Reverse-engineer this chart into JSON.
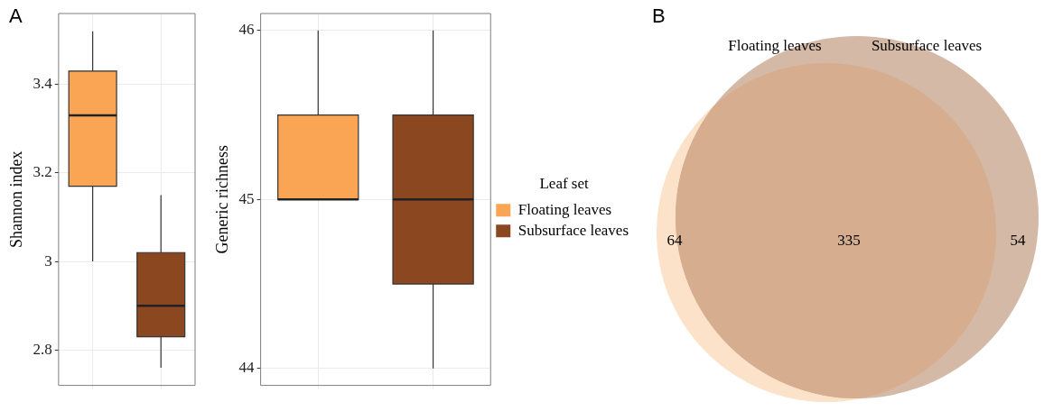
{
  "chart_data": [
    {
      "type": "box",
      "title": "A",
      "ylabel": "Shannon index",
      "categories": [
        null,
        null
      ],
      "ylim": [
        2.72,
        3.56
      ],
      "yticks": [
        2.8,
        3.0,
        3.2,
        3.4
      ],
      "grid": true,
      "legend": false,
      "series": [
        {
          "color": "#f9a553",
          "boxes": [
            {
              "low": 3.0,
              "q1": 3.17,
              "median": 3.33,
              "q3": 3.43,
              "high": 3.52
            },
            null
          ]
        },
        {
          "color": "#8b4720",
          "boxes": [
            null,
            {
              "low": 2.76,
              "q1": 2.83,
              "median": 2.9,
              "q3": 3.02,
              "high": 3.15
            }
          ]
        }
      ]
    },
    {
      "type": "box",
      "ylabel": "Generic richness",
      "categories": [
        null,
        null
      ],
      "ylim": [
        43.9,
        46.1
      ],
      "yticks": [
        44,
        45,
        46
      ],
      "grid": true,
      "legend": "right",
      "legend_title": "Leaf set",
      "series": [
        {
          "name": "Floating leaves",
          "color": "#f9a553",
          "boxes": [
            {
              "low": 45,
              "q1": 45,
              "median": 45,
              "q3": 45.5,
              "high": 46
            },
            null
          ]
        },
        {
          "name": "Subsurface leaves",
          "color": "#8b4720",
          "boxes": [
            null,
            {
              "low": 44,
              "q1": 44.5,
              "median": 45,
              "q3": 45.5,
              "high": 46
            }
          ]
        }
      ]
    },
    {
      "type": "other",
      "title": "B",
      "categories": [
        null,
        null,
        null
      ],
      "data_labels": true,
      "values": [
        64,
        335,
        54
      ],
      "colors": [
        "#fce2c9",
        "#d6ae8f",
        "#d4b9a6"
      ],
      "annotations": [
        "Floating leaves",
        "Subsurface leaves"
      ]
    }
  ]
}
